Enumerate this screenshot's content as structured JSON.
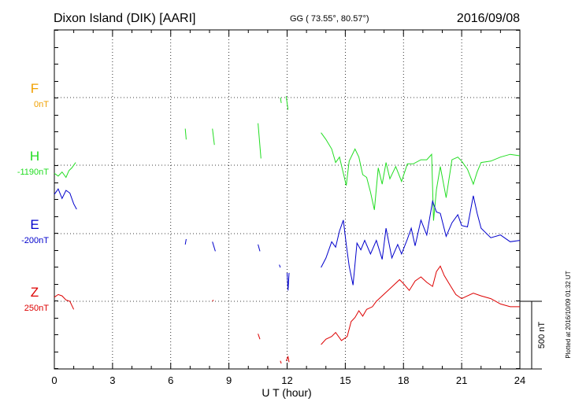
{
  "header": {
    "title": "Dixon Island (DIK)  [AARI]",
    "coords": "GG ( 73.55°,  80.57°)",
    "date": "2016/09/08"
  },
  "side_note": "Plotted at 2016/10/09 01:32 UT",
  "colors": {
    "F": "#f0a000",
    "H": "#22dd22",
    "E": "#0000cc",
    "Z": "#dd0000",
    "grid": "#000000"
  },
  "chart_data": {
    "type": "line",
    "xlabel": "U T (hour)",
    "xlim": [
      0,
      24
    ],
    "xticks": [
      "0",
      "3",
      "6",
      "9",
      "12",
      "15",
      "18",
      "21",
      "24"
    ],
    "scale_bar": {
      "label": "500 nT",
      "value_nT": 500
    },
    "series": [
      {
        "name": "F",
        "offset": "0nT",
        "segments": []
      },
      {
        "name": "H",
        "offset": "-1190nT",
        "segments": [
          [
            [
              0.0,
              -60
            ],
            [
              0.2,
              -80
            ],
            [
              0.4,
              -50
            ],
            [
              0.6,
              -90
            ],
            [
              0.75,
              -40
            ],
            [
              0.9,
              -20
            ],
            [
              1.1,
              20
            ]
          ],
          [
            [
              6.75,
              270
            ],
            [
              6.8,
              190
            ]
          ],
          [
            [
              8.15,
              270
            ],
            [
              8.25,
              150
            ]
          ],
          [
            [
              10.5,
              310
            ],
            [
              10.65,
              50
            ]
          ],
          [
            [
              11.65,
              500
            ],
            [
              11.7,
              460
            ]
          ],
          [
            [
              11.95,
              510
            ],
            [
              12.05,
              410
            ]
          ],
          [
            [
              13.75,
              240
            ],
            [
              14.0,
              190
            ],
            [
              14.3,
              120
            ],
            [
              14.5,
              20
            ],
            [
              14.7,
              60
            ],
            [
              14.9,
              -60
            ],
            [
              15.05,
              -150
            ],
            [
              15.2,
              30
            ],
            [
              15.5,
              120
            ],
            [
              15.7,
              60
            ],
            [
              15.9,
              -70
            ],
            [
              16.1,
              -90
            ],
            [
              16.3,
              -200
            ],
            [
              16.5,
              -330
            ],
            [
              16.7,
              -20
            ],
            [
              16.9,
              -140
            ],
            [
              17.1,
              20
            ],
            [
              17.3,
              -100
            ],
            [
              17.6,
              -10
            ],
            [
              17.9,
              -120
            ],
            [
              18.2,
              10
            ],
            [
              18.5,
              10
            ],
            [
              18.9,
              40
            ],
            [
              19.2,
              40
            ],
            [
              19.45,
              80
            ],
            [
              19.55,
              -410
            ],
            [
              19.7,
              -180
            ],
            [
              19.9,
              -10
            ],
            [
              20.2,
              -240
            ],
            [
              20.5,
              40
            ],
            [
              20.8,
              60
            ],
            [
              21.0,
              30
            ],
            [
              21.3,
              -30
            ],
            [
              21.6,
              -140
            ],
            [
              21.8,
              -50
            ],
            [
              22.0,
              20
            ],
            [
              22.5,
              30
            ],
            [
              23.0,
              60
            ],
            [
              23.5,
              80
            ],
            [
              24.0,
              70
            ]
          ]
        ]
      },
      {
        "name": "E",
        "offset": "-200nT",
        "segments": [
          [
            [
              0.0,
              290
            ],
            [
              0.2,
              330
            ],
            [
              0.4,
              260
            ],
            [
              0.6,
              320
            ],
            [
              0.8,
              300
            ],
            [
              1.0,
              220
            ],
            [
              1.15,
              180
            ]
          ],
          [
            [
              6.75,
              -80
            ],
            [
              6.8,
              -40
            ]
          ],
          [
            [
              8.15,
              -60
            ],
            [
              8.3,
              -130
            ]
          ],
          [
            [
              10.5,
              -80
            ],
            [
              10.6,
              -130
            ]
          ],
          [
            [
              11.6,
              -230
            ],
            [
              11.65,
              -250
            ]
          ],
          [
            [
              12.0,
              -290
            ],
            [
              12.05,
              -420
            ],
            [
              12.1,
              -290
            ]
          ],
          [
            [
              13.75,
              -250
            ],
            [
              14.0,
              -180
            ],
            [
              14.3,
              -60
            ],
            [
              14.5,
              -100
            ],
            [
              14.7,
              20
            ],
            [
              14.9,
              100
            ],
            [
              15.05,
              -80
            ],
            [
              15.2,
              -240
            ],
            [
              15.4,
              -380
            ],
            [
              15.6,
              -70
            ],
            [
              15.8,
              -120
            ],
            [
              16.0,
              -50
            ],
            [
              16.3,
              -150
            ],
            [
              16.6,
              -50
            ],
            [
              16.9,
              -190
            ],
            [
              17.1,
              40
            ],
            [
              17.4,
              -180
            ],
            [
              17.7,
              -80
            ],
            [
              17.9,
              -150
            ],
            [
              18.2,
              -40
            ],
            [
              18.4,
              40
            ],
            [
              18.6,
              -90
            ],
            [
              18.9,
              100
            ],
            [
              19.2,
              -10
            ],
            [
              19.5,
              240
            ],
            [
              19.7,
              160
            ],
            [
              19.9,
              150
            ],
            [
              20.2,
              -20
            ],
            [
              20.5,
              80
            ],
            [
              20.8,
              140
            ],
            [
              21.0,
              60
            ],
            [
              21.3,
              50
            ],
            [
              21.6,
              280
            ],
            [
              21.8,
              150
            ],
            [
              22.0,
              40
            ],
            [
              22.5,
              -30
            ],
            [
              23.0,
              -10
            ],
            [
              23.5,
              -60
            ],
            [
              24.0,
              -50
            ]
          ]
        ]
      },
      {
        "name": "Z",
        "offset": "250nT",
        "segments": [
          [
            [
              0.0,
              30
            ],
            [
              0.2,
              50
            ],
            [
              0.4,
              40
            ],
            [
              0.6,
              10
            ],
            [
              0.8,
              0
            ],
            [
              1.0,
              -60
            ]
          ],
          [
            [
              8.15,
              0
            ],
            [
              8.2,
              10
            ]
          ],
          [
            [
              10.5,
              -240
            ],
            [
              10.6,
              -280
            ]
          ],
          [
            [
              11.65,
              -440
            ],
            [
              11.7,
              -460
            ]
          ],
          [
            [
              11.95,
              -440
            ],
            [
              12.05,
              -410
            ],
            [
              12.1,
              -450
            ]
          ],
          [
            [
              13.75,
              -320
            ],
            [
              14.0,
              -280
            ],
            [
              14.3,
              -260
            ],
            [
              14.5,
              -230
            ],
            [
              14.8,
              -290
            ],
            [
              15.1,
              -260
            ],
            [
              15.3,
              -150
            ],
            [
              15.5,
              -120
            ],
            [
              15.7,
              -70
            ],
            [
              15.9,
              -110
            ],
            [
              16.1,
              -60
            ],
            [
              16.4,
              -40
            ],
            [
              16.6,
              0
            ],
            [
              16.9,
              40
            ],
            [
              17.2,
              80
            ],
            [
              17.5,
              120
            ],
            [
              17.8,
              160
            ],
            [
              18.0,
              130
            ],
            [
              18.3,
              80
            ],
            [
              18.6,
              150
            ],
            [
              18.9,
              180
            ],
            [
              19.2,
              140
            ],
            [
              19.5,
              110
            ],
            [
              19.7,
              220
            ],
            [
              19.9,
              260
            ],
            [
              20.1,
              190
            ],
            [
              20.4,
              120
            ],
            [
              20.7,
              50
            ],
            [
              21.0,
              20
            ],
            [
              21.3,
              40
            ],
            [
              21.6,
              60
            ],
            [
              22.0,
              40
            ],
            [
              22.5,
              20
            ],
            [
              23.0,
              -20
            ],
            [
              23.5,
              -40
            ],
            [
              24.0,
              -40
            ]
          ]
        ]
      }
    ]
  }
}
